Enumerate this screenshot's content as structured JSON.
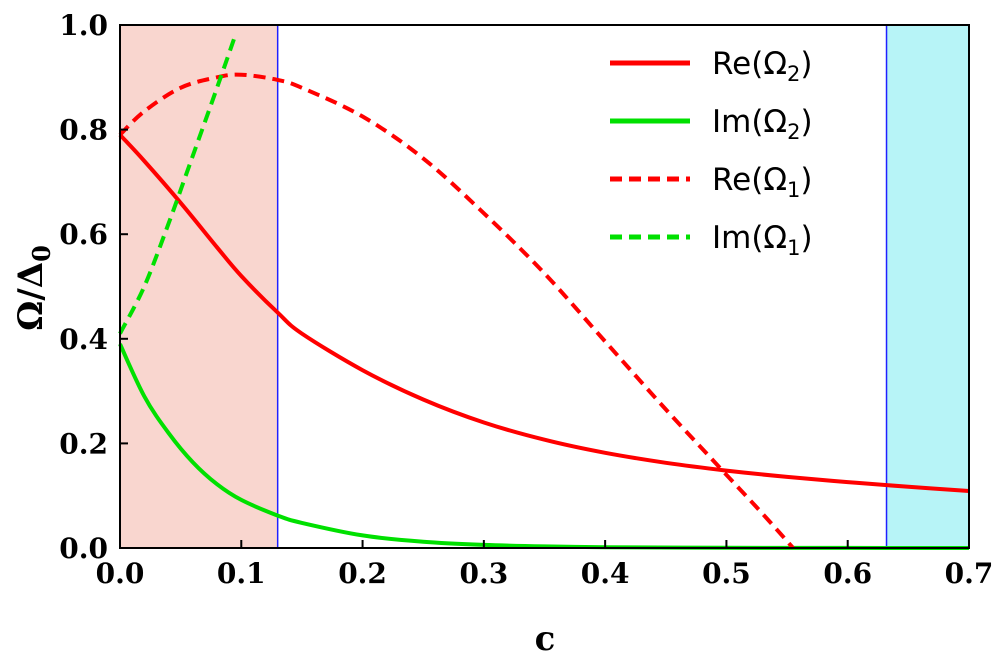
{
  "chart_data": {
    "type": "line",
    "xlabel": "c",
    "ylabel_main": "Ω/Δ",
    "ylabel_sub": "0",
    "xlim": [
      0.0,
      0.7
    ],
    "ylim": [
      0.0,
      1.0
    ],
    "x_ticks": [
      "0.0",
      "0.1",
      "0.2",
      "0.3",
      "0.4",
      "0.5",
      "0.6",
      "0.7"
    ],
    "y_ticks": [
      "0.0",
      "0.2",
      "0.4",
      "0.6",
      "0.8",
      "1.0"
    ],
    "shaded_regions": [
      {
        "name": "region-left",
        "x_range": [
          0.0,
          0.13
        ],
        "color": "#f9d6cf"
      },
      {
        "name": "region-right",
        "x_range": [
          0.632,
          0.7
        ],
        "color": "#b7f4f7"
      }
    ],
    "series": [
      {
        "name": "Re(Ω2)",
        "label_main": "Re(Ω",
        "label_sub": "2",
        "label_close": ")",
        "color": "#ff0000",
        "dashed": false,
        "x": [
          0.0,
          0.02,
          0.05,
          0.08,
          0.1,
          0.13,
          0.15,
          0.2,
          0.25,
          0.3,
          0.35,
          0.4,
          0.45,
          0.5,
          0.55,
          0.6,
          0.65,
          0.7
        ],
        "y": [
          0.79,
          0.74,
          0.66,
          0.575,
          0.52,
          0.45,
          0.41,
          0.34,
          0.284,
          0.24,
          0.207,
          0.182,
          0.163,
          0.148,
          0.136,
          0.126,
          0.117,
          0.109
        ]
      },
      {
        "name": "Im(Ω2)",
        "label_main": "Im(Ω",
        "label_sub": "2",
        "label_close": ")",
        "color": "#00e000",
        "dashed": false,
        "x": [
          0.0,
          0.02,
          0.04,
          0.06,
          0.08,
          0.1,
          0.13,
          0.15,
          0.2,
          0.25,
          0.3,
          0.35,
          0.4,
          0.5,
          0.6,
          0.7
        ],
        "y": [
          0.39,
          0.29,
          0.22,
          0.164,
          0.122,
          0.092,
          0.062,
          0.048,
          0.024,
          0.012,
          0.006,
          0.003,
          0.0015,
          0.0004,
          0.0001,
          0.0
        ]
      },
      {
        "name": "Re(Ω1)",
        "label_main": "Re(Ω",
        "label_sub": "1",
        "label_close": ")",
        "color": "#ff0000",
        "dashed": true,
        "x": [
          0.0,
          0.02,
          0.05,
          0.08,
          0.1,
          0.13,
          0.15,
          0.2,
          0.25,
          0.3,
          0.35,
          0.4,
          0.45,
          0.5,
          0.53,
          0.555
        ],
        "y": [
          0.79,
          0.835,
          0.88,
          0.9,
          0.905,
          0.895,
          0.88,
          0.825,
          0.745,
          0.64,
          0.525,
          0.395,
          0.265,
          0.14,
          0.065,
          0.0
        ]
      },
      {
        "name": "Im(Ω1)",
        "label_main": "Im(Ω",
        "label_sub": "1",
        "label_close": ")",
        "color": "#00e000",
        "dashed": true,
        "x": [
          0.0,
          0.02,
          0.04,
          0.06,
          0.08,
          0.095
        ],
        "y": [
          0.41,
          0.5,
          0.62,
          0.75,
          0.88,
          0.98
        ]
      }
    ]
  }
}
